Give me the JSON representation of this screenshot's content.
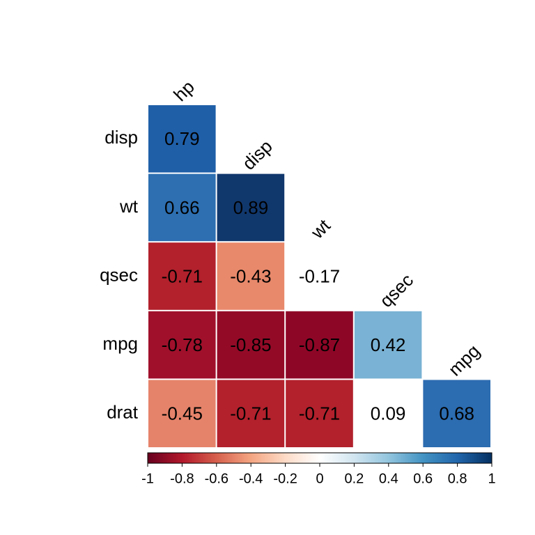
{
  "chart_data": {
    "type": "corrplot",
    "row_labels": [
      "disp",
      "wt",
      "qsec",
      "mpg",
      "drat"
    ],
    "col_labels": [
      "hp",
      "disp",
      "wt",
      "qsec",
      "mpg"
    ],
    "values": [
      [
        0.79,
        null,
        null,
        null,
        null
      ],
      [
        0.66,
        0.89,
        null,
        null,
        null
      ],
      [
        -0.71,
        -0.43,
        -0.17,
        null,
        null
      ],
      [
        -0.78,
        -0.85,
        -0.87,
        0.42,
        null
      ],
      [
        -0.45,
        -0.71,
        -0.71,
        0.09,
        0.68
      ]
    ],
    "colors": [
      [
        "#1f5fa8",
        null,
        null,
        null,
        null
      ],
      [
        "#2d6fb1",
        "#11386d",
        null,
        null,
        null
      ],
      [
        "#b2212c",
        "#e8896b",
        "#ffffff",
        null,
        null
      ],
      [
        "#a0102b",
        "#930a27",
        "#8e0626",
        "#79b2d4",
        null
      ],
      [
        "#e5836a",
        "#b2212c",
        "#b2212c",
        "#ffffff",
        "#2c6cb0"
      ]
    ],
    "colorscale": [
      [
        -1,
        "#67001f"
      ],
      [
        -0.8,
        "#b2182b"
      ],
      [
        -0.6,
        "#d6604d"
      ],
      [
        -0.4,
        "#f4a582"
      ],
      [
        -0.2,
        "#fddbc7"
      ],
      [
        0,
        "#ffffff"
      ],
      [
        0.2,
        "#d1e5f0"
      ],
      [
        0.4,
        "#92c5de"
      ],
      [
        0.6,
        "#4393c3"
      ],
      [
        0.8,
        "#2166ac"
      ],
      [
        1,
        "#053061"
      ]
    ],
    "clim": [
      -1,
      1
    ],
    "cticks": [
      -1,
      -0.8,
      -0.6,
      -0.4,
      -0.2,
      0,
      0.2,
      0.4,
      0.6,
      0.8,
      1
    ]
  }
}
